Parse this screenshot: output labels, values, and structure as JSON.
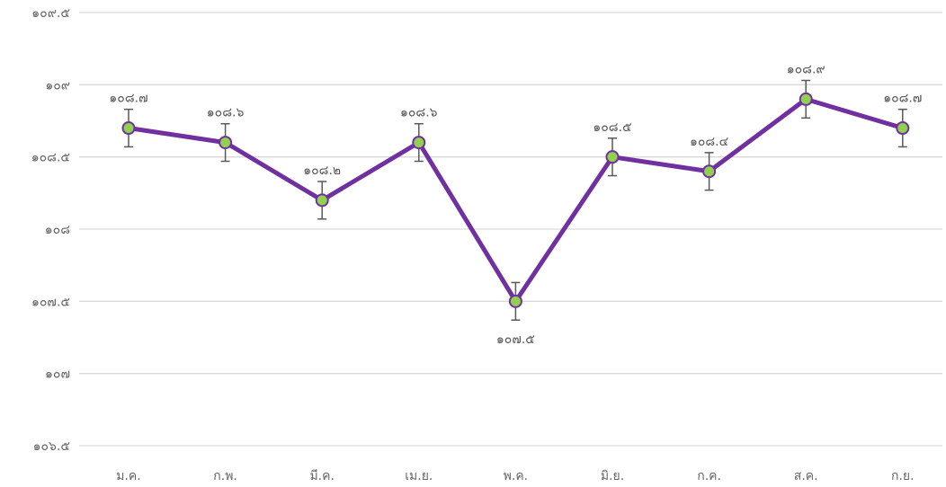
{
  "chart_data": {
    "type": "line",
    "title": "",
    "xlabel": "",
    "ylabel": "",
    "categories": [
      "ม.ค.",
      "ก.พ.",
      "มี.ค.",
      "เม.ย.",
      "พ.ค.",
      "มิ.ย.",
      "ก.ค.",
      "ส.ค.",
      "ก.ย."
    ],
    "series": [
      {
        "values": [
          108.7,
          108.6,
          108.2,
          108.6,
          107.5,
          108.5,
          108.4,
          108.9,
          108.7
        ],
        "value_labels": [
          "๑๐๘.๗",
          "๑๐๘.๖",
          "๑๐๘.๒",
          "๑๐๘.๖",
          "๑๐๗.๕",
          "๑๐๘.๕",
          "๑๐๘.๔",
          "๑๐๘.๙",
          "๑๐๘.๗"
        ],
        "error": [
          0.13,
          0.13,
          0.13,
          0.13,
          0.13,
          0.13,
          0.13,
          0.13,
          0.13
        ],
        "color": "#7030a0",
        "marker_color": "#92d050"
      }
    ],
    "ylim": [
      106.5,
      109.5
    ],
    "yticks": [
      106.5,
      107,
      107.5,
      108,
      108.5,
      109,
      109.5
    ],
    "ytick_labels": [
      "๑๐๖.๕",
      "๑๐๗",
      "๑๐๗.๕",
      "๑๐๘",
      "๑๐๘.๕",
      "๑๐๙",
      "๑๐๙.๕"
    ],
    "grid": true,
    "legend": "none"
  }
}
